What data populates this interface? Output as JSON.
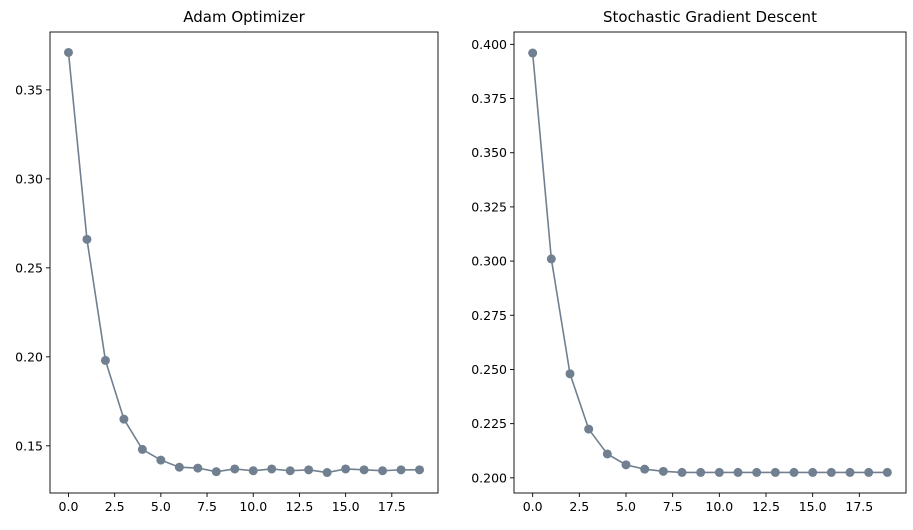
{
  "chart_data": [
    {
      "type": "line",
      "title": "Adam Optimizer",
      "xlabel": "",
      "ylabel": "",
      "x": [
        0,
        1,
        2,
        3,
        4,
        5,
        6,
        7,
        8,
        9,
        10,
        11,
        12,
        13,
        14,
        15,
        16,
        17,
        18,
        19
      ],
      "series": [
        {
          "values": [
            0.371,
            0.266,
            0.198,
            0.165,
            0.148,
            0.142,
            0.138,
            0.1375,
            0.1355,
            0.137,
            0.136,
            0.137,
            0.136,
            0.1365,
            0.135,
            0.137,
            0.1365,
            0.136,
            0.1365,
            0.1365
          ],
          "color": "#708090"
        }
      ],
      "xlim": [
        -1,
        20
      ],
      "ylim": [
        0.1235,
        0.3825
      ],
      "xticks": [
        0.0,
        2.5,
        5.0,
        7.5,
        10.0,
        12.5,
        15.0,
        17.5
      ],
      "xtick_labels": [
        "0.0",
        "2.5",
        "5.0",
        "7.5",
        "10.0",
        "12.5",
        "15.0",
        "17.5"
      ],
      "yticks": [
        0.15,
        0.2,
        0.25,
        0.3,
        0.35
      ],
      "ytick_labels": [
        "0.15",
        "0.20",
        "0.25",
        "0.30",
        "0.35"
      ],
      "grid": false,
      "marker": "circle"
    },
    {
      "type": "line",
      "title": "Stochastic Gradient Descent",
      "xlabel": "",
      "ylabel": "",
      "x": [
        0,
        1,
        2,
        3,
        4,
        5,
        6,
        7,
        8,
        9,
        10,
        11,
        12,
        13,
        14,
        15,
        16,
        17,
        18,
        19
      ],
      "series": [
        {
          "values": [
            0.396,
            0.301,
            0.248,
            0.2225,
            0.211,
            0.206,
            0.204,
            0.203,
            0.2025,
            0.2025,
            0.2025,
            0.2025,
            0.2025,
            0.2025,
            0.2025,
            0.2025,
            0.2025,
            0.2025,
            0.2025,
            0.2025
          ],
          "color": "#708090"
        }
      ],
      "xlim": [
        -1,
        20
      ],
      "ylim": [
        0.193,
        0.4057
      ],
      "xticks": [
        0.0,
        2.5,
        5.0,
        7.5,
        10.0,
        12.5,
        15.0,
        17.5
      ],
      "xtick_labels": [
        "0.0",
        "2.5",
        "5.0",
        "7.5",
        "10.0",
        "12.5",
        "15.0",
        "17.5"
      ],
      "yticks": [
        0.2,
        0.225,
        0.25,
        0.275,
        0.3,
        0.325,
        0.35,
        0.375,
        0.4
      ],
      "ytick_labels": [
        "0.200",
        "0.225",
        "0.250",
        "0.275",
        "0.300",
        "0.325",
        "0.350",
        "0.375",
        "0.400"
      ],
      "grid": false,
      "marker": "circle"
    }
  ]
}
